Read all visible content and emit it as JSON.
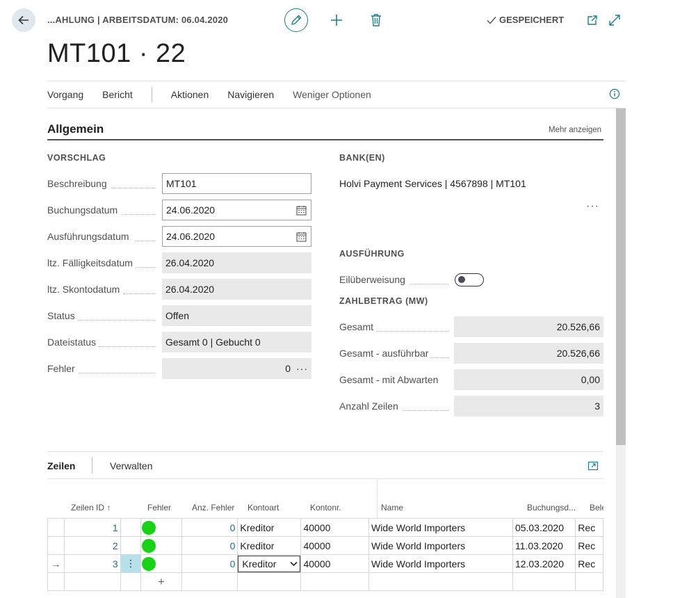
{
  "header": {
    "breadcrumb": "...AHLUNG | ARBEITSDATUM: 06.04.2020",
    "saved_label": "GESPEICHERT",
    "title": "MT101 · 22",
    "icons": [
      "back-arrow-icon",
      "pencil-icon",
      "plus-icon",
      "trash-icon",
      "check-icon",
      "open-in-new-icon",
      "expand-icon"
    ]
  },
  "action_bar": {
    "items": [
      "Vorgang",
      "Bericht",
      "Aktionen",
      "Navigieren",
      "Weniger Optionen"
    ]
  },
  "section": {
    "title": "Allgemein",
    "more_label": "Mehr anzeigen"
  },
  "vorschlag": {
    "title": "VORSCHLAG",
    "fields": [
      {
        "label": "Beschreibung",
        "value": "MT101"
      },
      {
        "label": "Buchungsdatum",
        "value": "24.06.2020"
      },
      {
        "label": "Ausführungsdatum",
        "value": "24.06.2020"
      },
      {
        "label": "ltz. Fälligkeitsdatum",
        "value": "26.04.2020"
      },
      {
        "label": "ltz. Skontodatum",
        "value": "26.04.2020"
      },
      {
        "label": "Status",
        "value": "Offen"
      },
      {
        "label": "Dateistatus",
        "value": "Gesamt 0 | Gebucht 0"
      },
      {
        "label": "Fehler",
        "value": "0",
        "more": "···"
      }
    ]
  },
  "bank": {
    "title": "BANK(EN)",
    "line": "Holvi Payment Services | 4567898 | MT101",
    "more": "···"
  },
  "ausfuehrung": {
    "title": "AUSFÜHRUNG",
    "eil_label": "Eilüberweisung",
    "eil_on": false
  },
  "zahlbetrag": {
    "title": "ZAHLBETRAG (MW)",
    "fields": [
      {
        "label": "Gesamt",
        "value": "20.526,66"
      },
      {
        "label": "Gesamt - ausführbar",
        "value": "20.526,66"
      },
      {
        "label": "Gesamt - mit Abwarten",
        "value": "0,00"
      },
      {
        "label": "Anzahl Zeilen",
        "value": "3"
      }
    ]
  },
  "lines": {
    "tabs": [
      "Zeilen",
      "Verwalten"
    ],
    "columns": [
      "Zeilen ID ↑",
      "Fehler",
      "Anz. Fehler",
      "Kontoart",
      "Kontonr.",
      "Name",
      "Buchungsd...",
      "Bele"
    ],
    "rows": [
      {
        "id": "1",
        "anz": "0",
        "kontoart": "Kreditor",
        "kontonr": "40000",
        "name": "Wide World Importers",
        "datum": "05.03.2020",
        "bele": "Rec"
      },
      {
        "id": "2",
        "anz": "0",
        "kontoart": "Kreditor",
        "kontonr": "40000",
        "name": "Wide World Importers",
        "datum": "11.03.2020",
        "bele": "Rec"
      },
      {
        "id": "3",
        "anz": "0",
        "kontoart": "Kreditor",
        "kontonr": "40000",
        "name": "Wide World Importers",
        "datum": "12.03.2020",
        "bele": "Rec"
      }
    ],
    "current_row_marker": "→",
    "row_menu": "⋮",
    "add_row": "+"
  },
  "colors": {
    "accent": "#1a7d8c",
    "status_ok": "#16d316",
    "selected_cell": "#b7e1ea"
  }
}
